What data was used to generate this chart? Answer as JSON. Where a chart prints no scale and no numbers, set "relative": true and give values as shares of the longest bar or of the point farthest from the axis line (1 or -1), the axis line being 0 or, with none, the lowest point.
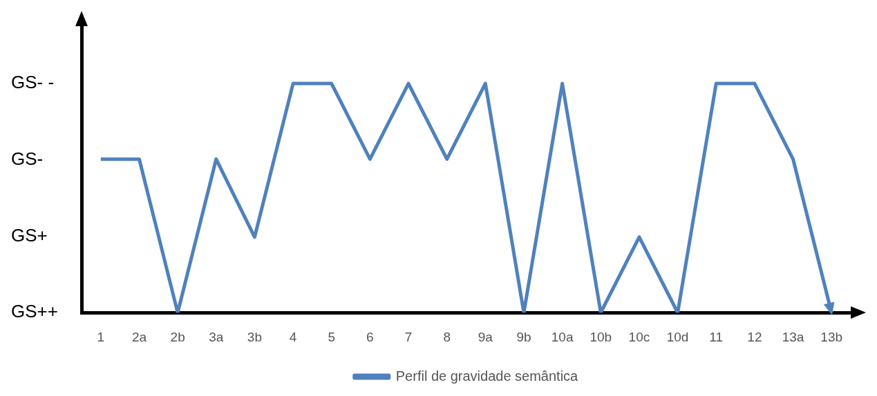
{
  "chart_data": {
    "type": "line",
    "relative": true,
    "categories": [
      "1",
      "2a",
      "2b",
      "3a",
      "3b",
      "4",
      "5",
      "6",
      "7",
      "8",
      "9a",
      "9b",
      "10a",
      "10b",
      "10c",
      "10d",
      "11",
      "12",
      "13a",
      "13b"
    ],
    "series": [
      {
        "name": "Perfil de gravidade semântica",
        "color": "#4f81bd",
        "values": [
          0.67,
          0.67,
          0,
          0.67,
          0.33,
          1,
          1,
          0.67,
          1,
          0.67,
          1,
          0,
          1,
          0,
          0.33,
          0,
          1,
          1,
          0.67,
          0
        ]
      }
    ],
    "annotations": [
      "GS++",
      "GS+",
      "GS-",
      "GS- -"
    ],
    "grid": false,
    "legend": "bottom",
    "marker": "none",
    "line_style": "solid"
  }
}
